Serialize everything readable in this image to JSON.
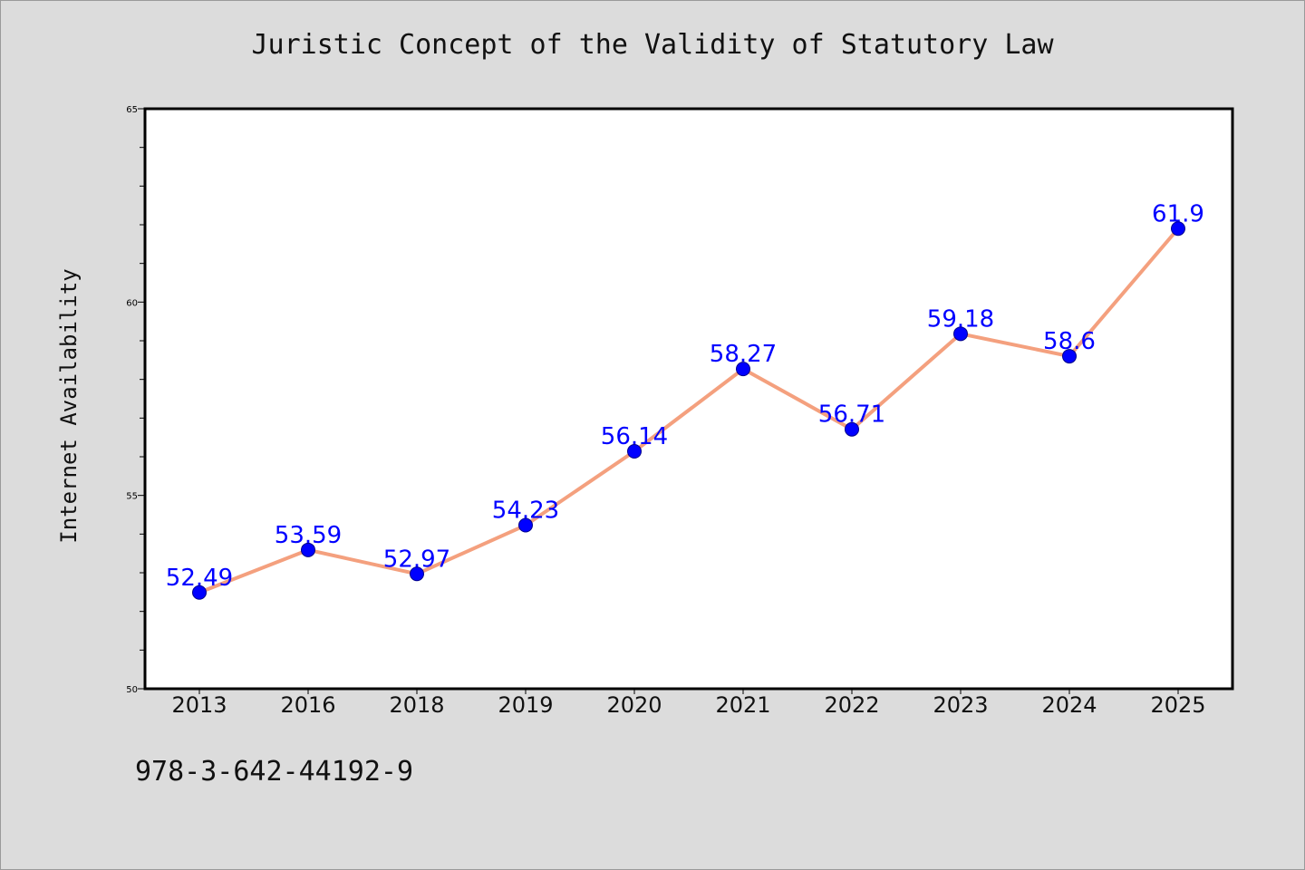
{
  "chart_data": {
    "type": "line",
    "title": "Juristic Concept of the Validity of Statutory Law",
    "xlabel": "",
    "ylabel": "Internet Availability",
    "categories": [
      "2013",
      "2016",
      "2018",
      "2019",
      "2020",
      "2021",
      "2022",
      "2023",
      "2024",
      "2025"
    ],
    "series": [
      {
        "values": [
          52.49,
          53.59,
          52.97,
          54.23,
          56.14,
          58.27,
          56.71,
          59.18,
          58.6,
          61.9
        ],
        "data_labels": [
          "52.49",
          "53.59",
          "52.97",
          "54.23",
          "56.14",
          "58.27",
          "56.71",
          "59.18",
          "58.6",
          "61.9"
        ]
      }
    ],
    "ylim": [
      50,
      65
    ],
    "yticks": [
      "50",
      "55",
      "60",
      "65"
    ],
    "grid": false,
    "legend": "none",
    "colors": {
      "line": "#f4a07e",
      "marker": "#0000ff",
      "data_label": "#0000ff",
      "background": "#dcdcdc",
      "plot_background": "#ffffff"
    }
  },
  "footer": {
    "isbn": "978-3-642-44192-9"
  }
}
